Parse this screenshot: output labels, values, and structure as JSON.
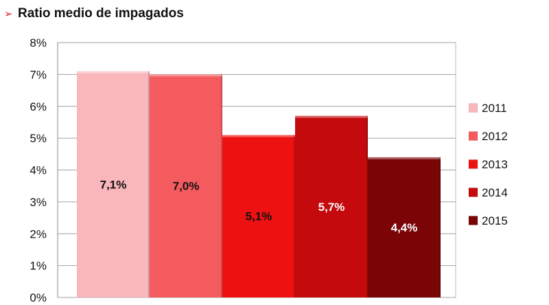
{
  "title_marker": "➢",
  "title": "Ratio medio de impagados",
  "chart_data": {
    "type": "bar",
    "categories": [
      "2011",
      "2012",
      "2013",
      "2014",
      "2015"
    ],
    "values": [
      7.1,
      7.0,
      5.1,
      5.7,
      4.4
    ],
    "value_labels": [
      "7,1%",
      "7,0%",
      "5,1%",
      "5,7%",
      "4,4%"
    ],
    "colors": [
      "#f9b6bb",
      "#f45b5e",
      "#ee1111",
      "#c40a0c",
      "#7a0406"
    ],
    "label_colors": [
      "#111111",
      "#111111",
      "#111111",
      "#ffffff",
      "#ffffff"
    ],
    "ylim": [
      0,
      8
    ],
    "yticks": [
      "0%",
      "1%",
      "2%",
      "3%",
      "4%",
      "5%",
      "6%",
      "7%",
      "8%"
    ],
    "xlabel": "",
    "ylabel": "",
    "grid": true,
    "legend": {
      "position": "right",
      "entries": [
        "2011",
        "2012",
        "2013",
        "2014",
        "2015"
      ]
    }
  }
}
